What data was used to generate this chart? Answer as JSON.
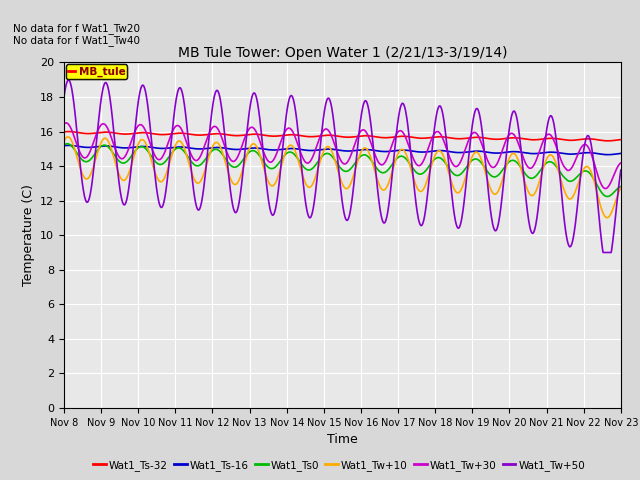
{
  "title": "MB Tule Tower: Open Water 1 (2/21/13-3/19/14)",
  "xlabel": "Time",
  "ylabel": "Temperature (C)",
  "ylim": [
    0,
    20
  ],
  "xlim": [
    0,
    15
  ],
  "xtick_labels": [
    "Nov 8",
    "Nov 9",
    "Nov 10",
    "Nov 11",
    "Nov 12",
    "Nov 13",
    "Nov 14",
    "Nov 15",
    "Nov 16",
    "Nov 17",
    "Nov 18",
    "Nov 19",
    "Nov 20",
    "Nov 21",
    "Nov 22",
    "Nov 23"
  ],
  "no_data_text": [
    "No data for f Wat1_Tw20",
    "No data for f Wat1_Tw40"
  ],
  "legend_box_label": "MB_tule",
  "series": {
    "Wat1_Ts-32": {
      "color": "#ff0000"
    },
    "Wat1_Ts-16": {
      "color": "#0000cc"
    },
    "Wat1_Ts0": {
      "color": "#00bb00"
    },
    "Wat1_Tw+10": {
      "color": "#ffaa00"
    },
    "Wat1_Tw+30": {
      "color": "#cc00cc"
    },
    "Wat1_Tw+50": {
      "color": "#8800cc"
    }
  },
  "background_color": "#d8d8d8",
  "plot_bg_color": "#e8e8e8"
}
